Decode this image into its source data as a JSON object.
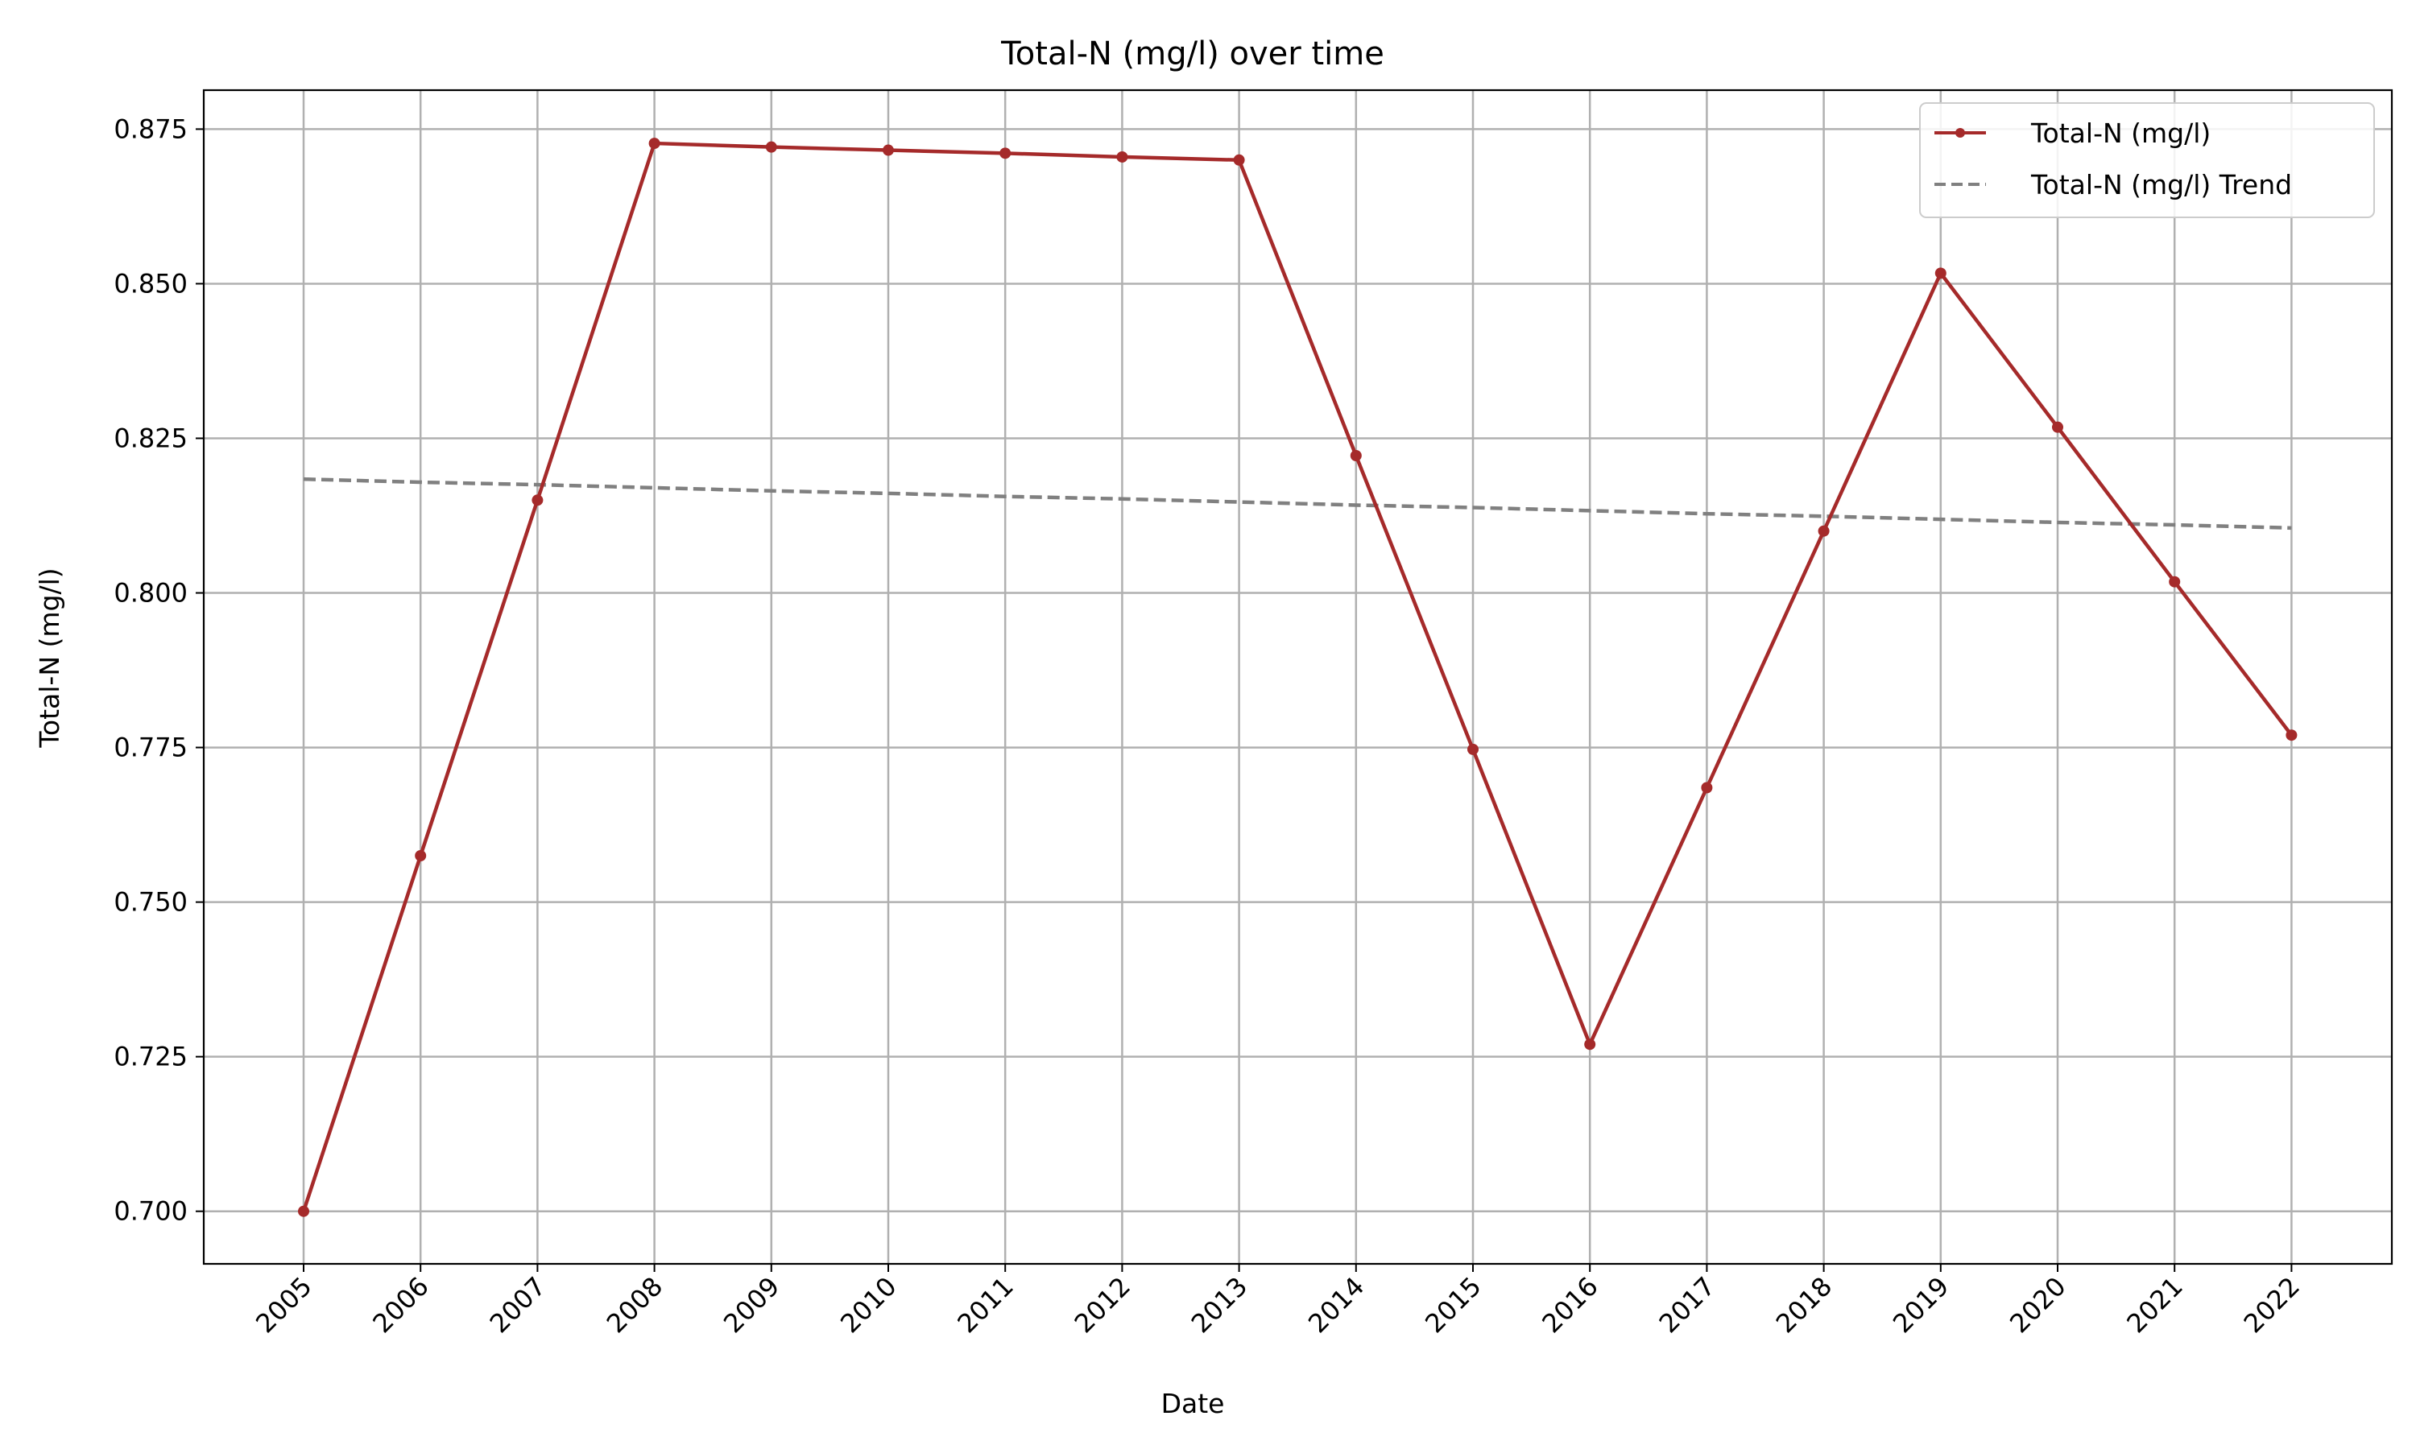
{
  "chart_data": {
    "type": "line",
    "title": "Total-N (mg/l) over time",
    "xlabel": "Date",
    "ylabel": "Total-N (mg/l)",
    "x": [
      "2005",
      "2006",
      "2007",
      "2008",
      "2009",
      "2010",
      "2011",
      "2012",
      "2013",
      "2014",
      "2015",
      "2016",
      "2017",
      "2018",
      "2019",
      "2020",
      "2021",
      "2022"
    ],
    "ylim": [
      0.6915,
      0.8813
    ],
    "yticks": [
      "0.700",
      "0.725",
      "0.750",
      "0.775",
      "0.800",
      "0.825",
      "0.850",
      "0.875"
    ],
    "grid": true,
    "legend_position": "top-right",
    "series": [
      {
        "name": "Total-N (mg/l)",
        "style": "solid-markers",
        "color": "#a52a2a",
        "values": [
          0.7,
          0.7575,
          0.815,
          0.8727,
          0.8721,
          0.8716,
          0.8711,
          0.8705,
          0.87,
          0.8222,
          0.7747,
          0.727,
          0.7685,
          0.81,
          0.8517,
          0.8268,
          0.8018,
          0.777
        ]
      },
      {
        "name": "Total-N (mg/l) Trend",
        "style": "dashed",
        "color": "#808080",
        "values": [
          0.8184,
          0.8179,
          0.8175,
          0.817,
          0.8165,
          0.8161,
          0.8156,
          0.8152,
          0.8147,
          0.8142,
          0.8138,
          0.8133,
          0.8128,
          0.8124,
          0.8119,
          0.8114,
          0.811,
          0.8105
        ]
      }
    ]
  }
}
